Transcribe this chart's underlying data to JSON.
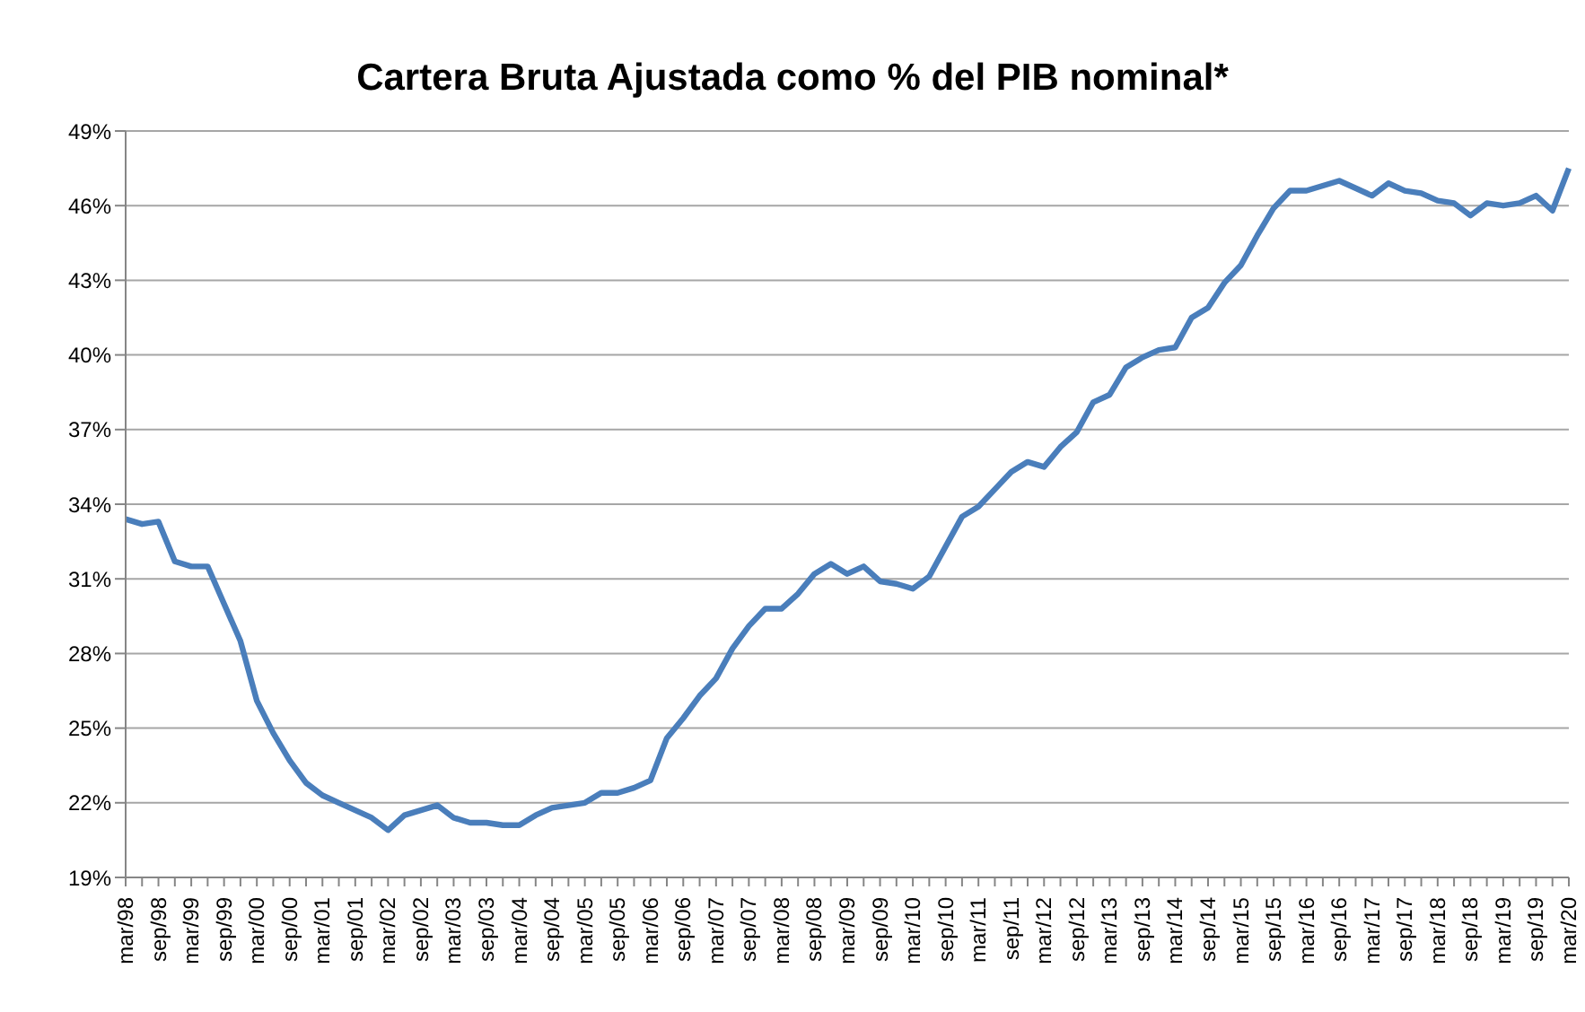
{
  "chart_data": {
    "type": "line",
    "title": "Cartera Bruta Ajustada como % del PIB nominal*",
    "categories": [
      "mar/98",
      null,
      "sep/98",
      null,
      "mar/99",
      null,
      "sep/99",
      null,
      "mar/00",
      null,
      "sep/00",
      null,
      "mar/01",
      null,
      "sep/01",
      null,
      "mar/02",
      null,
      "sep/02",
      null,
      "mar/03",
      null,
      "sep/03",
      null,
      "mar/04",
      null,
      "sep/04",
      null,
      "mar/05",
      null,
      "sep/05",
      null,
      "mar/06",
      null,
      "sep/06",
      null,
      "mar/07",
      null,
      "sep/07",
      null,
      "mar/08",
      null,
      "sep/08",
      null,
      "mar/09",
      null,
      "sep/09",
      null,
      "mar/10",
      null,
      "sep/10",
      null,
      "mar/11",
      null,
      "sep/11",
      null,
      "mar/12",
      null,
      "sep/12",
      null,
      "mar/13",
      null,
      "sep/13",
      null,
      "mar/14",
      null,
      "sep/14",
      null,
      "mar/15",
      null,
      "sep/15",
      null,
      "mar/16",
      null,
      "sep/16",
      null,
      "mar/17",
      null,
      "sep/17",
      null,
      "mar/18",
      null,
      "sep/18",
      null,
      "mar/19",
      null,
      "sep/19",
      null,
      "mar/20"
    ],
    "series": [
      {
        "color": "#4a7ebb",
        "values": [
          33.4,
          33.2,
          33.3,
          31.7,
          31.5,
          31.5,
          30.0,
          28.5,
          26.1,
          24.8,
          23.7,
          22.8,
          22.3,
          22.0,
          21.7,
          21.4,
          20.9,
          21.5,
          21.7,
          21.9,
          21.4,
          21.2,
          21.2,
          21.1,
          21.1,
          21.5,
          21.8,
          21.9,
          22.0,
          22.4,
          22.4,
          22.6,
          22.9,
          24.6,
          25.4,
          26.3,
          27.0,
          28.2,
          29.1,
          29.8,
          29.8,
          30.4,
          31.2,
          31.6,
          31.2,
          31.5,
          30.9,
          30.8,
          30.6,
          31.1,
          32.3,
          33.5,
          33.9,
          34.6,
          35.3,
          35.7,
          35.5,
          36.3,
          36.9,
          38.1,
          38.4,
          39.5,
          39.9,
          40.2,
          40.3,
          41.5,
          41.9,
          42.9,
          43.6,
          44.8,
          45.9,
          46.6,
          46.6,
          46.8,
          47.0,
          46.7,
          46.4,
          46.9,
          46.6,
          46.5,
          46.2,
          46.1,
          45.6,
          46.1,
          46.0,
          46.1,
          46.4,
          45.8,
          47.5
        ]
      }
    ],
    "ylim": [
      19,
      49
    ],
    "yticks": [
      {
        "value": 19,
        "label": "19%"
      },
      {
        "value": 22,
        "label": "22%"
      },
      {
        "value": 25,
        "label": "25%"
      },
      {
        "value": 28,
        "label": "28%"
      },
      {
        "value": 31,
        "label": "31%"
      },
      {
        "value": 34,
        "label": "34%"
      },
      {
        "value": 37,
        "label": "37%"
      },
      {
        "value": 40,
        "label": "40%"
      },
      {
        "value": 43,
        "label": "43%"
      },
      {
        "value": 46,
        "label": "46%"
      },
      {
        "value": 49,
        "label": "49%"
      }
    ],
    "grid": "y",
    "legend": false,
    "marker": "none",
    "line_style": "solid"
  }
}
